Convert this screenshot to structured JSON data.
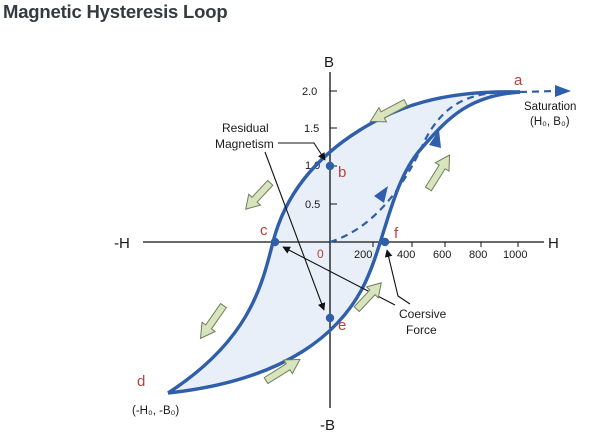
{
  "title": "Magnetic Hysteresis Loop",
  "axes": {
    "y_pos_label": "B",
    "y_neg_label": "-B",
    "x_pos_label": "H",
    "x_neg_label": "-H",
    "origin_label": "0",
    "y_ticks": [
      "2.0",
      "1.5",
      "1.0",
      "0.5"
    ],
    "x_ticks": [
      "200",
      "400",
      "600",
      "800",
      "1000"
    ]
  },
  "points": {
    "a": "a",
    "b": "b",
    "c": "c",
    "d": "d",
    "e": "e",
    "f": "f"
  },
  "annotations": {
    "saturation_line1": "Saturation",
    "saturation_line2": "(H₀, B₀)",
    "residual_line1": "Residual",
    "residual_line2": "Magnetism",
    "coersive_line1": "Coersive",
    "coersive_line2": "Force",
    "negative_saturation": "(-H₀, -B₀)"
  },
  "colors": {
    "loop": "#2f5eaa",
    "fill": "#e9eff8",
    "point_label": "#b5433a",
    "arrow_fill": "#d7e4be",
    "arrow_stroke": "#6f7f57"
  }
}
